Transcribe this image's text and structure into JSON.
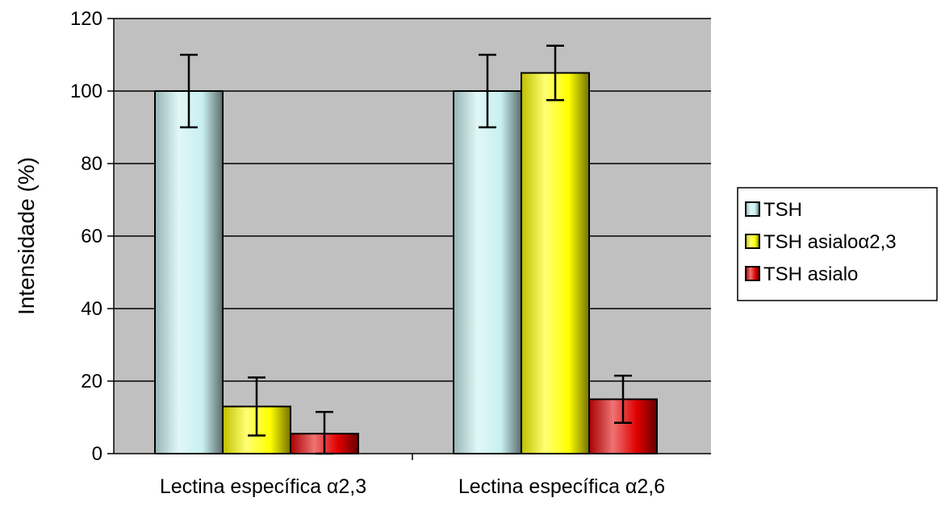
{
  "chart_data": {
    "type": "bar",
    "categories": [
      "Lectina específica α2,3",
      "Lectina específica α2,6"
    ],
    "series": [
      {
        "name": "TSH",
        "values": [
          100,
          100
        ],
        "errors": [
          10,
          10
        ],
        "color": "#c8f0f0"
      },
      {
        "name": "TSH asialoα2,3",
        "values": [
          13,
          105
        ],
        "errors": [
          8,
          7.5
        ],
        "color": "#ffff00"
      },
      {
        "name": "TSH asialo",
        "values": [
          5.5,
          15
        ],
        "errors": [
          6,
          6.5
        ],
        "color": "#e00000"
      }
    ],
    "title": "",
    "xlabel": "",
    "ylabel": "Intensidade (%)",
    "ylim": [
      0,
      120
    ],
    "yticks": [
      "0",
      "20",
      "40",
      "60",
      "80",
      "100",
      "120"
    ],
    "grid": true,
    "plot_background": "#c0c0c0",
    "legend_position": "right"
  }
}
